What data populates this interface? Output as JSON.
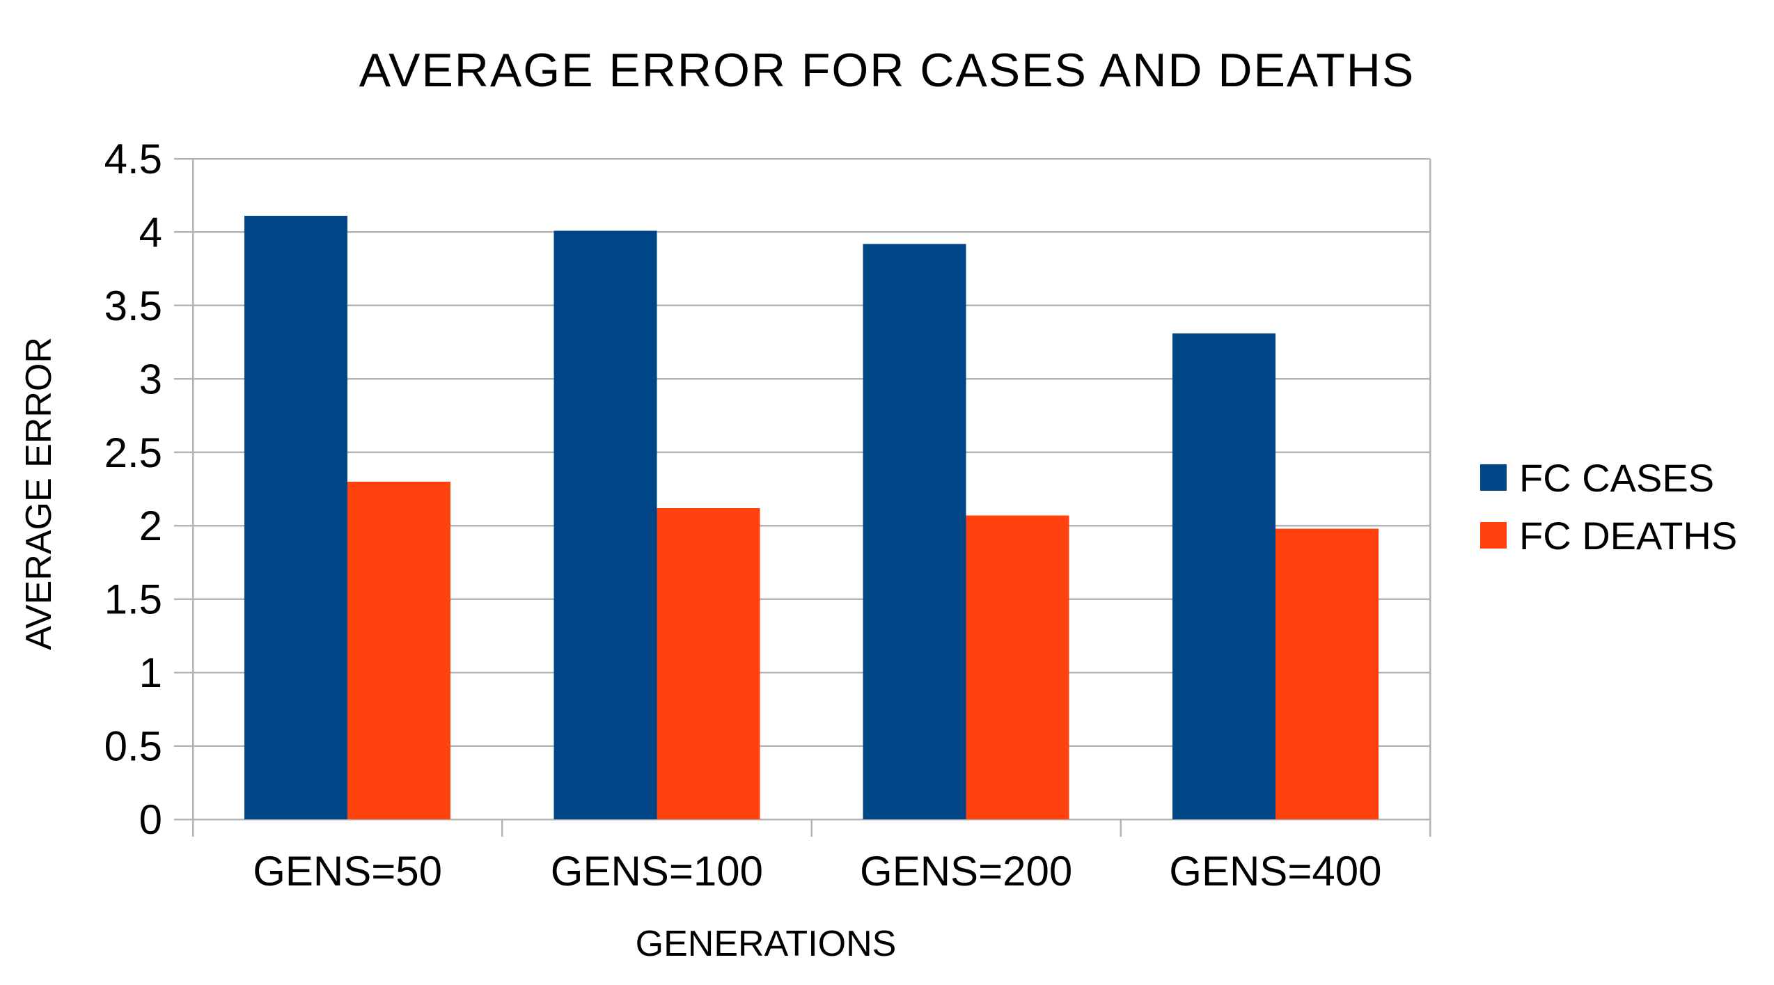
{
  "chart_data": {
    "type": "bar",
    "title": "AVERAGE ERROR FOR CASES AND DEATHS",
    "xlabel": "GENERATIONS",
    "ylabel": "AVERAGE ERROR",
    "categories": [
      "GENS=50",
      "GENS=100",
      "GENS=200",
      "GENS=400"
    ],
    "series": [
      {
        "name": "FC CASES",
        "color": "#004586",
        "values": [
          4.11,
          4.01,
          3.92,
          3.31
        ]
      },
      {
        "name": "FC DEATHS",
        "color": "#FF420E",
        "values": [
          2.3,
          2.12,
          2.07,
          1.98
        ]
      }
    ],
    "ylim": [
      0,
      4.5
    ],
    "y_tick_step": 0.5,
    "y_tick_labels": [
      "0",
      "0.5",
      "1",
      "1.5",
      "2",
      "2.5",
      "3",
      "3.5",
      "4",
      "4.5"
    ],
    "grid": "horizontal",
    "gridline_color": "#b3b3b3",
    "axis_color": "#b3b3b3",
    "text_color": "#000000",
    "legend_position": "right"
  }
}
